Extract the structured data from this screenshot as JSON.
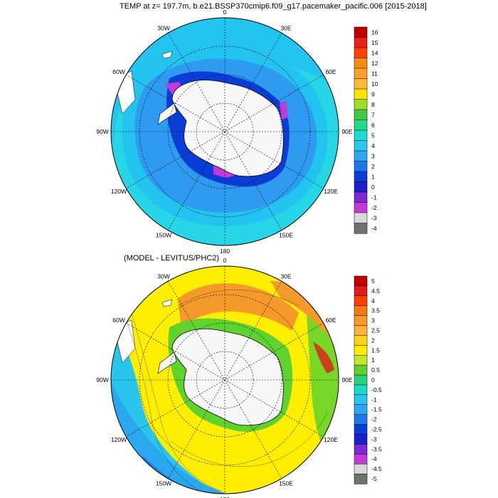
{
  "titles": {
    "top": "TEMP at z= 197.7m, b.e21.BSSP370cmip6.f09_g17.pacemaker_pacific.006 [2015-2018]",
    "bottom": "(MODEL - LEVITUS/PHC2)"
  },
  "longitude_labels": [
    "0",
    "30E",
    "60E",
    "90E",
    "120E",
    "150E",
    "180",
    "150W",
    "120W",
    "90W",
    "60W",
    "30W"
  ],
  "colorbar_top": {
    "labels": [
      "16",
      "15",
      "14",
      "12",
      "11",
      "10",
      "9",
      "8",
      "7",
      "6",
      "5",
      "4",
      "3",
      "2",
      "1",
      "0",
      "-1",
      "-2",
      "-3",
      "-4"
    ],
    "colors": [
      "#c00000",
      "#ee1c1c",
      "#ff4000",
      "#f38a17",
      "#ff9e2e",
      "#ffb83b",
      "#ffe500",
      "#a6dc28",
      "#43c843",
      "#26d78a",
      "#20d9d2",
      "#2ec7f0",
      "#2aa7ee",
      "#1f78ea",
      "#0a3cd6",
      "#1f1fc8",
      "#7a2bd4",
      "#c43ad7",
      "#d9d9d9",
      "#707070"
    ]
  },
  "colorbar_bottom": {
    "labels": [
      "5",
      "4.5",
      "4",
      "3.5",
      "3",
      "2.5",
      "2",
      "1.5",
      "1",
      "0.5",
      "0",
      "-0.5",
      "-1",
      "-1.5",
      "-2",
      "-2.5",
      "-3",
      "-3.5",
      "-4",
      "-4.5",
      "-5"
    ],
    "colors": [
      "#c00000",
      "#e11a1a",
      "#ff4000",
      "#f07b12",
      "#f59a2a",
      "#ffb23a",
      "#ffd21a",
      "#ffee00",
      "#c8e628",
      "#5fd22e",
      "#2bd07a",
      "#1ed9c8",
      "#2ac5ef",
      "#2aa7ee",
      "#1f78ea",
      "#0a3cd6",
      "#1f1fc8",
      "#7a2bd4",
      "#c43ad7",
      "#d9d9d9",
      "#707070"
    ]
  },
  "map_colors": {
    "antarctica": "#f7f7f7",
    "top_ocean": "#2e9af0",
    "top_mid": "#22c3ef",
    "top_outer": "#26d6e6",
    "top_cold": "#0a3cd6",
    "top_coldest": "#c43ad7",
    "bottom_base": "#ffee00",
    "bottom_warm": "#f59a2a",
    "bottom_cool": "#2ac5ef",
    "bottom_green": "#5fd22e"
  }
}
